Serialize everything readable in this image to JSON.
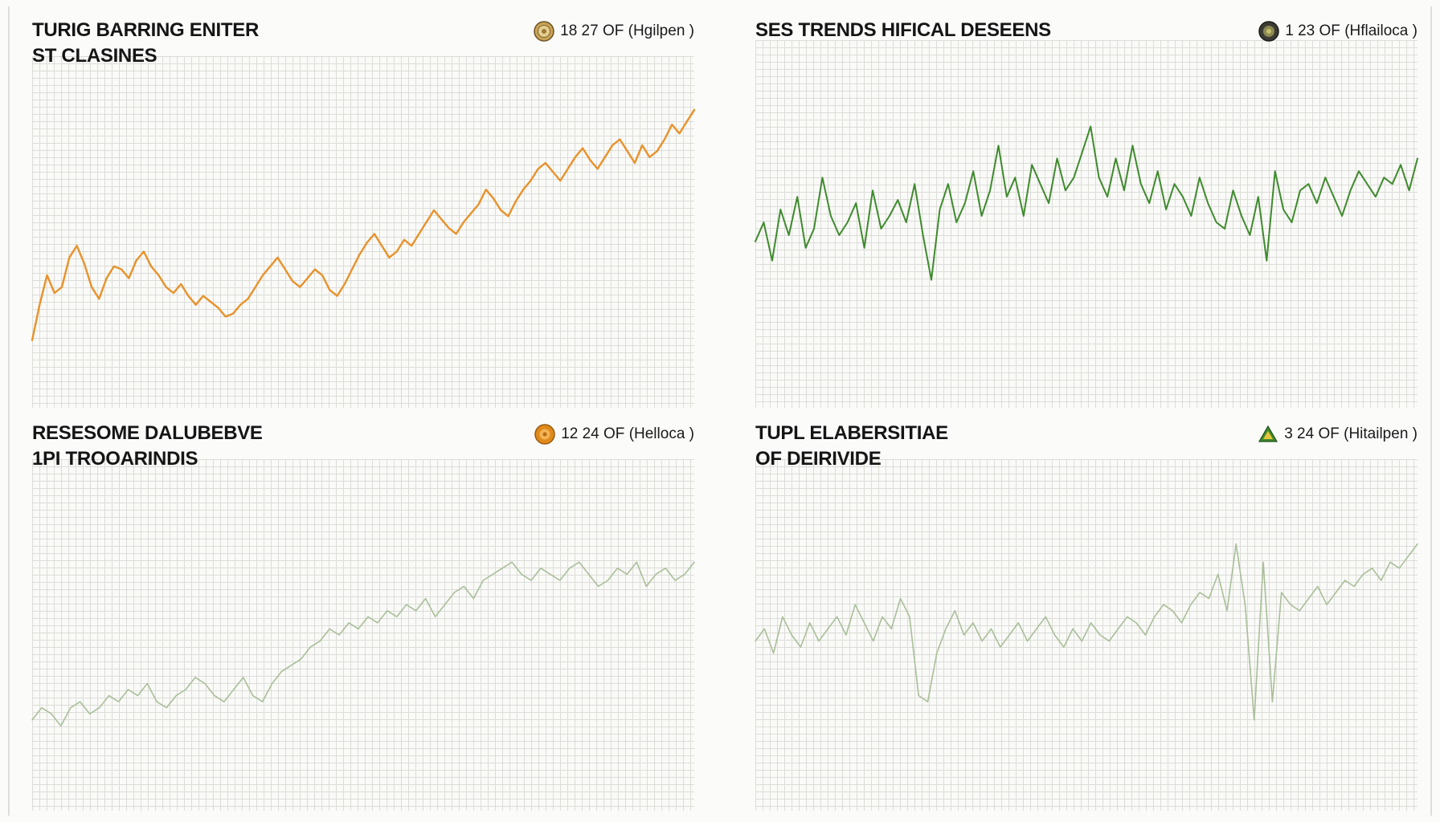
{
  "colors": {
    "orange": "#e8922a",
    "green": "#3f8a2e",
    "light_green": "#a9bf9a",
    "grid": "#dcdcd8",
    "text": "#151515"
  },
  "panels": [
    {
      "title_line1": "TURIG BARRING ENITER",
      "title_line2": "ST CLASINES",
      "meta": "18 27 OF (Hgilpen )",
      "icon": "gold-coin-icon"
    },
    {
      "title_line1": "SES TRENDS HIFICAL DESEENS",
      "title_line2": "",
      "meta": "1 23 OF (Hflailoca )",
      "icon": "dark-coin-icon"
    },
    {
      "title_line1": "RESESOME DALUBEBVE",
      "title_line2": "1PI TROOARINDIS",
      "meta": "12 24 OF (Helloca )",
      "icon": "orange-coin-icon"
    },
    {
      "title_line1": "TUPL ELABERSITIAE",
      "title_line2": "OF DEIRIVIDE",
      "meta": "3 24 OF (Hitailpen )",
      "icon": "green-triangle-icon"
    }
  ],
  "chart_data": [
    {
      "type": "line",
      "ylim": [
        0,
        100
      ],
      "grid": true,
      "series": [
        {
          "color": "#e8922a",
          "values": [
            12,
            24,
            34,
            28,
            30,
            40,
            44,
            38,
            30,
            26,
            33,
            37,
            36,
            33,
            39,
            42,
            37,
            34,
            30,
            28,
            31,
            27,
            24,
            27,
            25,
            23,
            20,
            21,
            24,
            26,
            30,
            34,
            37,
            40,
            36,
            32,
            30,
            33,
            36,
            34,
            29,
            27,
            31,
            36,
            41,
            45,
            48,
            44,
            40,
            42,
            46,
            44,
            48,
            52,
            56,
            53,
            50,
            48,
            52,
            55,
            58,
            63,
            60,
            56,
            54,
            59,
            63,
            66,
            70,
            72,
            69,
            66,
            70,
            74,
            77,
            73,
            70,
            74,
            78,
            80,
            76,
            72,
            78,
            74,
            76,
            80,
            85,
            82,
            86,
            90
          ]
        }
      ]
    },
    {
      "type": "line",
      "ylim": [
        0,
        100
      ],
      "grid": true,
      "series": [
        {
          "color": "#3f8a2e",
          "values": [
            42,
            48,
            36,
            52,
            44,
            56,
            40,
            46,
            62,
            50,
            44,
            48,
            54,
            40,
            58,
            46,
            50,
            55,
            48,
            60,
            44,
            30,
            52,
            60,
            48,
            54,
            64,
            50,
            58,
            72,
            56,
            62,
            50,
            66,
            60,
            54,
            68,
            58,
            62,
            70,
            78,
            62,
            56,
            68,
            58,
            72,
            60,
            54,
            64,
            52,
            60,
            56,
            50,
            62,
            54,
            48,
            46,
            58,
            50,
            44,
            56,
            36,
            64,
            52,
            48,
            58,
            60,
            54,
            62,
            56,
            50,
            58,
            64,
            60,
            56,
            62,
            60,
            66,
            58,
            68
          ]
        }
      ]
    },
    {
      "type": "line",
      "ylim": [
        0,
        100
      ],
      "grid": true,
      "series": [
        {
          "color": "#a9bf9a",
          "values": [
            22,
            26,
            24,
            20,
            26,
            28,
            24,
            26,
            30,
            28,
            32,
            30,
            34,
            28,
            26,
            30,
            32,
            36,
            34,
            30,
            28,
            32,
            36,
            30,
            28,
            34,
            38,
            40,
            42,
            46,
            48,
            52,
            50,
            54,
            52,
            56,
            54,
            58,
            56,
            60,
            58,
            62,
            56,
            60,
            64,
            66,
            62,
            68,
            70,
            72,
            74,
            70,
            68,
            72,
            70,
            68,
            72,
            74,
            70,
            66,
            68,
            72,
            70,
            74,
            66,
            70,
            72,
            68,
            70,
            74
          ]
        }
      ]
    },
    {
      "type": "line",
      "ylim": [
        0,
        100
      ],
      "grid": true,
      "series": [
        {
          "color": "#a9bf9a",
          "values": [
            48,
            52,
            44,
            56,
            50,
            46,
            54,
            48,
            52,
            56,
            50,
            60,
            54,
            48,
            56,
            52,
            62,
            56,
            30,
            28,
            44,
            52,
            58,
            50,
            54,
            48,
            52,
            46,
            50,
            54,
            48,
            52,
            56,
            50,
            46,
            52,
            48,
            54,
            50,
            48,
            52,
            56,
            54,
            50,
            56,
            60,
            58,
            54,
            60,
            64,
            62,
            70,
            58,
            80,
            60,
            22,
            74,
            28,
            64,
            60,
            58,
            62,
            66,
            60,
            64,
            68,
            66,
            70,
            72,
            68,
            74,
            72,
            76,
            80
          ]
        }
      ]
    }
  ]
}
